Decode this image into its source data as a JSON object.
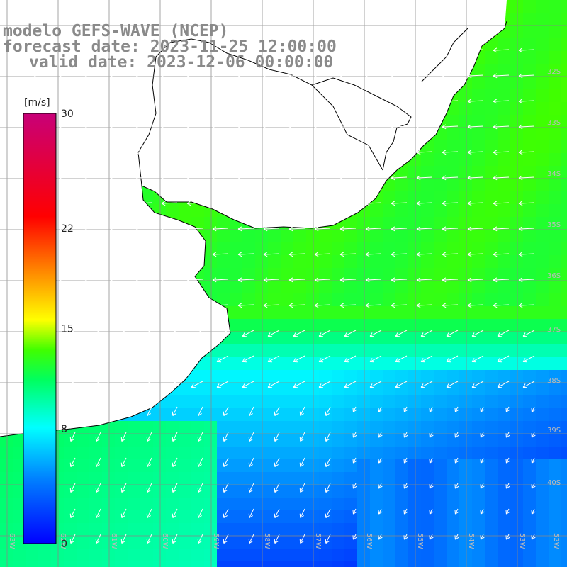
{
  "header": {
    "model_line": "modelo GEFS-WAVE (NCEP)",
    "forecast_line": "forecast date: 2023-11-25 12:00:00",
    "valid_line": "valid date: 2023-12-06 00:00:00"
  },
  "colorbar": {
    "unit": "[m/s]",
    "ticks": [
      {
        "value": 30,
        "label": "30"
      },
      {
        "value": 22,
        "label": "22"
      },
      {
        "value": 15,
        "label": "15"
      },
      {
        "value": 8,
        "label": "8"
      },
      {
        "value": 0,
        "label": "0"
      }
    ],
    "range": [
      0,
      30
    ],
    "colors": [
      "#0000ff",
      "#0080ff",
      "#00ffff",
      "#00ff40",
      "#80ff00",
      "#ffff00",
      "#ff8000",
      "#ff0000",
      "#c80078"
    ]
  },
  "map": {
    "lat_labels": [
      "32S",
      "33S",
      "34S",
      "35S",
      "36S",
      "37S",
      "38S",
      "39S",
      "40S"
    ],
    "lon_labels": [
      "63W",
      "62W",
      "61W",
      "60W",
      "59W",
      "58W",
      "57W",
      "56W",
      "55W",
      "54W",
      "53W",
      "52W"
    ],
    "land_color": "#ffffff",
    "arrow_color": "#ffffff",
    "wind_direction": "from east in north, from north-east in south"
  }
}
